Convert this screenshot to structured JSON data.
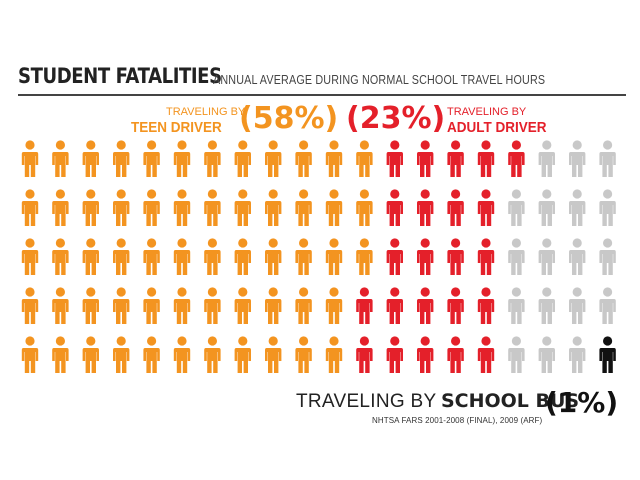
{
  "header": {
    "title": "STUDENT FATALITIES",
    "subtitle": "ANNUAL AVERAGE DURING NORMAL SCHOOL TRAVEL HOURS"
  },
  "teen": {
    "small_label": "TRAVELING BY",
    "big_label": "TEEN DRIVER",
    "percent": "(58%)",
    "color": "#f39420"
  },
  "adult": {
    "small_label": "TRAVELING BY",
    "big_label": "ADULT DRIVER",
    "percent": "(23%)",
    "color": "#e4202a"
  },
  "bus": {
    "label_prefix": "TRAVELING BY",
    "label_bold": "SCHOOL BUS",
    "percent": "(1%)",
    "color": "#111111"
  },
  "other_color": "#c8c8c8",
  "source": "NHTSA FARS 2001-2008 (FINAL), 2009 (ARF)",
  "chart_data": {
    "type": "pictogram",
    "title": "STUDENT FATALITIES",
    "subtitle": "ANNUAL AVERAGE DURING NORMAL SCHOOL TRAVEL HOURS",
    "total_icons": 100,
    "layout": "column-major, 5 rows x 20 columns",
    "series": [
      {
        "name": "TEEN DRIVER",
        "percent": 58,
        "count": 58,
        "color": "#f39420"
      },
      {
        "name": "ADULT DRIVER",
        "percent": 23,
        "count": 23,
        "color": "#e4202a"
      },
      {
        "name": "",
        "percent": 18,
        "count": 18,
        "color": "#c8c8c8"
      },
      {
        "name": "SCHOOL BUS",
        "percent": 1,
        "count": 1,
        "color": "#111111"
      }
    ]
  }
}
